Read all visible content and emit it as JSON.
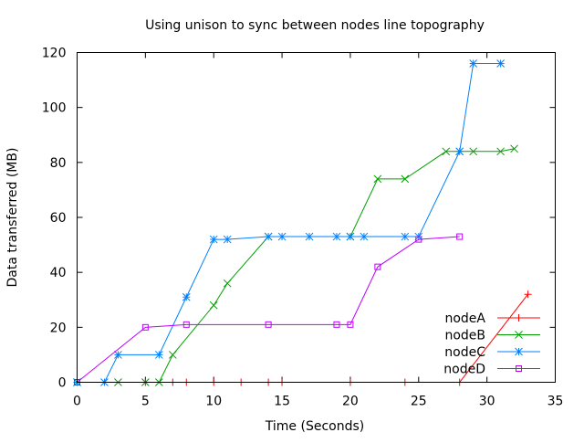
{
  "chart_data": {
    "type": "line",
    "title": "Using unison to sync between nodes line topography",
    "xlabel": "Time (Seconds)",
    "ylabel": "Data transferred (MB)",
    "xlim": [
      0,
      35
    ],
    "ylim": [
      0,
      120
    ],
    "xticks": [
      0,
      5,
      10,
      15,
      20,
      25,
      30,
      35
    ],
    "yticks": [
      0,
      20,
      40,
      60,
      80,
      100,
      120
    ],
    "grid": false,
    "legend_position": "bottom-right",
    "series": [
      {
        "name": "nodeA",
        "color": "#ff0000",
        "marker": "plus",
        "x": [
          0,
          5,
          7,
          8,
          10,
          12,
          14,
          15,
          20,
          24,
          28,
          33
        ],
        "y": [
          0,
          0,
          0,
          0,
          0,
          0,
          0,
          0,
          0,
          0,
          0,
          32
        ]
      },
      {
        "name": "nodeB",
        "color": "#00a000",
        "marker": "cross",
        "x": [
          0,
          3,
          5,
          6,
          7,
          10,
          11,
          14,
          20,
          22,
          24,
          27,
          28,
          29,
          31,
          32
        ],
        "y": [
          0,
          0,
          0,
          0,
          10,
          28,
          36,
          53,
          53,
          74,
          74,
          84,
          84,
          84,
          84,
          85
        ]
      },
      {
        "name": "nodeC",
        "color": "#0080ff",
        "marker": "star",
        "x": [
          0,
          2,
          3,
          6,
          8,
          10,
          11,
          14,
          15,
          17,
          19,
          20,
          21,
          24,
          25,
          28,
          29,
          31
        ],
        "y": [
          0,
          0,
          10,
          10,
          31,
          52,
          52,
          53,
          53,
          53,
          53,
          53,
          53,
          53,
          53,
          84,
          116,
          116
        ]
      },
      {
        "name": "nodeD",
        "color": "#c000ff",
        "marker": "square",
        "x": [
          0,
          5,
          8,
          14,
          19,
          20,
          22,
          25,
          28
        ],
        "y": [
          0,
          20,
          21,
          21,
          21,
          21,
          42,
          52,
          53
        ]
      }
    ]
  }
}
